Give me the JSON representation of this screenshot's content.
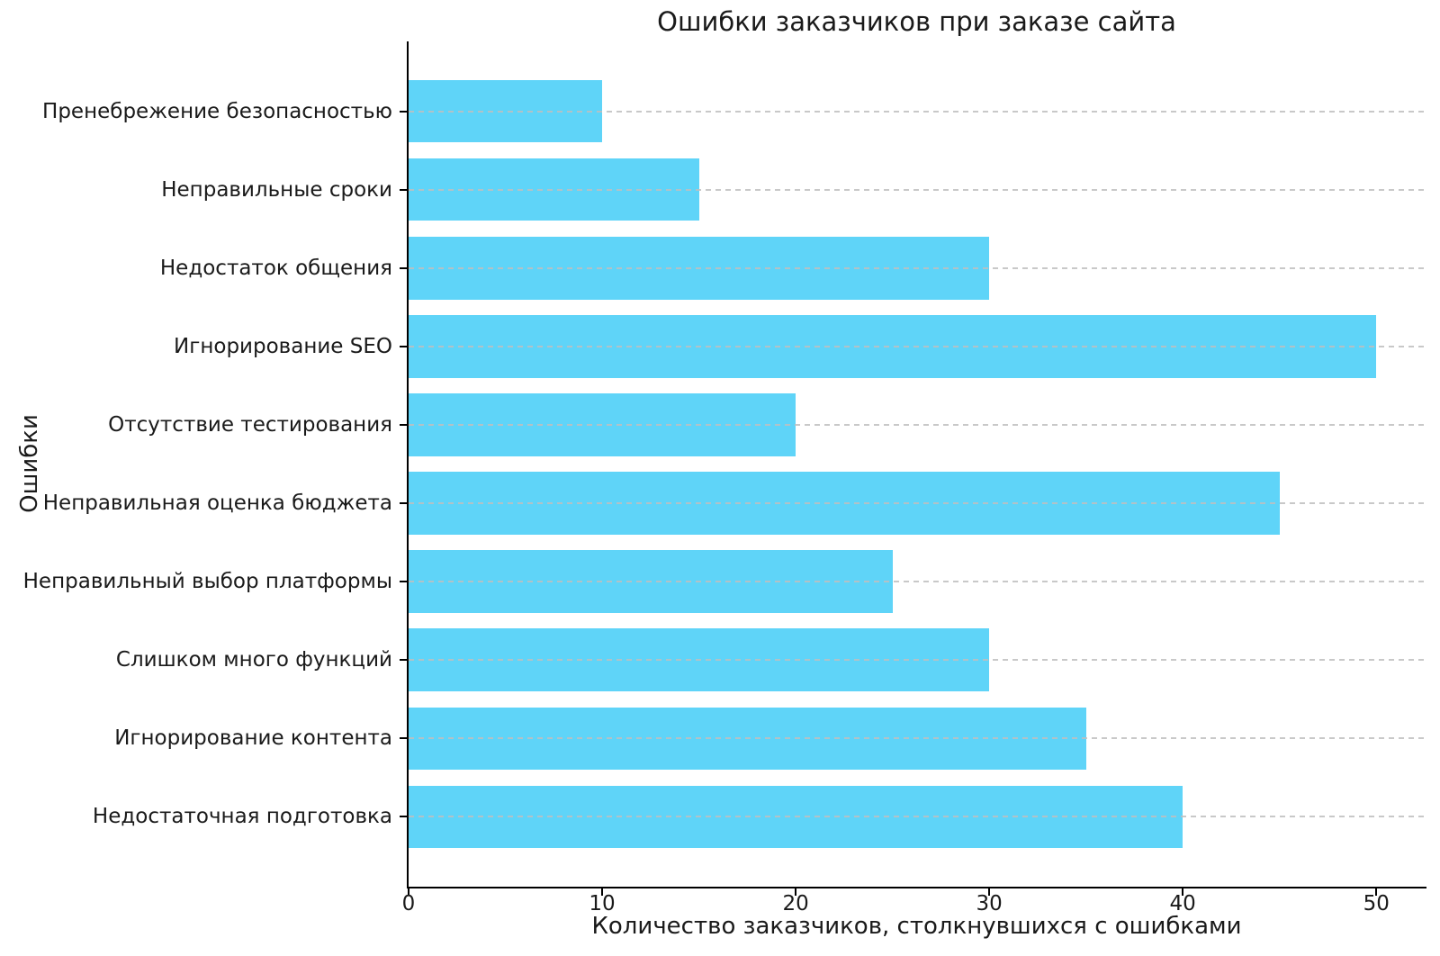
{
  "chart_data": {
    "type": "bar",
    "orientation": "horizontal",
    "title": "Ошибки заказчиков при заказе сайта",
    "xlabel": "Количество заказчиков, столкнувшихся с ошибками",
    "ylabel": "Ошибки",
    "categories": [
      "Пренебрежение безопасностью",
      "Неправильные сроки",
      "Недостаток общения",
      "Игнорирование SEO",
      "Отсутствие тестирования",
      "Неправильная оценка бюджета",
      "Неправильный выбор платформы",
      "Слишком много функций",
      "Игнорирование контента",
      "Недостаточная подготовка"
    ],
    "values": [
      10,
      15,
      30,
      50,
      20,
      45,
      25,
      30,
      35,
      40
    ],
    "xticks": [
      0,
      10,
      20,
      30,
      40,
      50
    ],
    "xlim": [
      0,
      52.5
    ],
    "bar_thickness_frac": 0.8,
    "grid": "horizontal-dashed",
    "legend": "none",
    "colors": {
      "bar": "#5FD4F8",
      "grid": "#bfbfbf",
      "spine": "#000000",
      "text": "#1a1a1a",
      "background": "#ffffff"
    }
  }
}
